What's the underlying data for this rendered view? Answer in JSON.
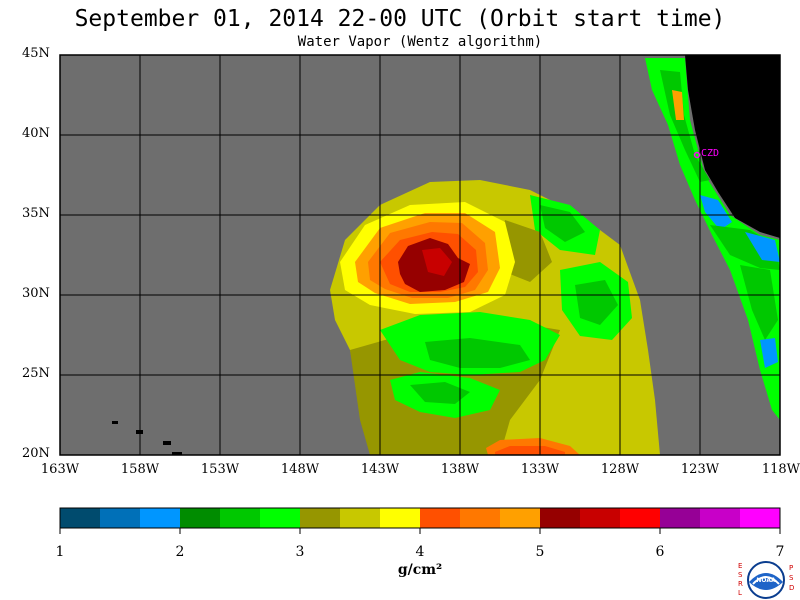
{
  "header": {
    "title": "September 01, 2014  22-00 UTC  (Orbit start time)",
    "subtitle": "Water Vapor (Wentz algorithm)"
  },
  "map": {
    "lat_labels": [
      "45N",
      "40N",
      "35N",
      "30N",
      "25N",
      "20N"
    ],
    "lat_values": [
      45,
      40,
      35,
      30,
      25,
      20
    ],
    "lon_labels": [
      "163W",
      "158W",
      "153W",
      "148W",
      "143W",
      "138W",
      "133W",
      "128W",
      "123W",
      "118W"
    ],
    "lon_values": [
      -163,
      -158,
      -153,
      -148,
      -143,
      -138,
      -133,
      -128,
      -123,
      -118
    ],
    "extent": {
      "lon_min": -163,
      "lon_max": -118,
      "lat_min": 20,
      "lat_max": 45
    },
    "station_label": "CZD",
    "colors": {
      "no_data": "#6e6e6e",
      "land": "#000000",
      "grid": "#000000",
      "station": "#ff00ff"
    }
  },
  "colorbar": {
    "labels": [
      "1",
      "2",
      "3",
      "4",
      "5",
      "6",
      "7"
    ],
    "values": [
      1,
      2,
      3,
      4,
      5,
      6,
      7
    ],
    "units": "g/cm²",
    "colors": [
      "#004b6e",
      "#0070b8",
      "#0096ff",
      "#008c00",
      "#00c800",
      "#00ff00",
      "#969600",
      "#c8c800",
      "#ffff00",
      "#ff5000",
      "#ff7800",
      "#ffa000",
      "#960000",
      "#c80000",
      "#ff0000",
      "#960096",
      "#c800c8",
      "#ff00ff"
    ]
  },
  "logo": {
    "left_letters": [
      "E",
      "S",
      "R",
      "L"
    ],
    "right_letters": [
      "P",
      "S",
      "D"
    ],
    "center_text": "NOAA"
  }
}
